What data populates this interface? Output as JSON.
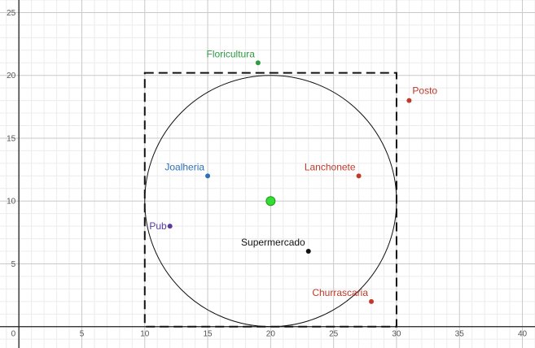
{
  "chart_data": {
    "type": "scatter",
    "title": "",
    "xlabel": "",
    "ylabel": "",
    "xlim": [
      -1.5,
      41
    ],
    "ylim": [
      -1.7,
      26
    ],
    "grid": true,
    "minor_step": 1,
    "major_step": 5,
    "x_ticks": [
      "0",
      "5",
      "10",
      "15",
      "20",
      "25",
      "30",
      "35",
      "40"
    ],
    "y_ticks": [
      "5",
      "10",
      "15",
      "20",
      "25"
    ],
    "origin_label": "0",
    "colors": {
      "grid_minor": "#ececec",
      "grid_major": "#c9c9c9",
      "axis": "#222222",
      "center": "#33dd33"
    },
    "points": [
      {
        "label": "Floricultura",
        "x": 19,
        "y": 21,
        "color": "#2e9a44",
        "label_pos": "above-left"
      },
      {
        "label": "Posto",
        "x": 31,
        "y": 18,
        "color": "#c0392b",
        "label_pos": "above-right"
      },
      {
        "label": "Joalheria",
        "x": 15,
        "y": 12,
        "color": "#2c6fb7",
        "label_pos": "above-left"
      },
      {
        "label": "Lanchonete",
        "x": 27,
        "y": 12,
        "color": "#c0392b",
        "label_pos": "above-left"
      },
      {
        "label": "Pub",
        "x": 12,
        "y": 8,
        "color": "#5b3c9e",
        "label_pos": "left"
      },
      {
        "label": "Supermercado",
        "x": 23,
        "y": 6,
        "color": "#111111",
        "label_pos": "above-left"
      },
      {
        "label": "Churrascaria",
        "x": 28,
        "y": 2,
        "color": "#c0392b",
        "label_pos": "above-left"
      }
    ],
    "center": {
      "x": 20,
      "y": 10
    },
    "circle": {
      "cx": 20,
      "cy": 10,
      "r": 10
    },
    "square": {
      "x_min": 10,
      "x_max": 30,
      "y_min": 0,
      "y_max": 20.2
    }
  }
}
